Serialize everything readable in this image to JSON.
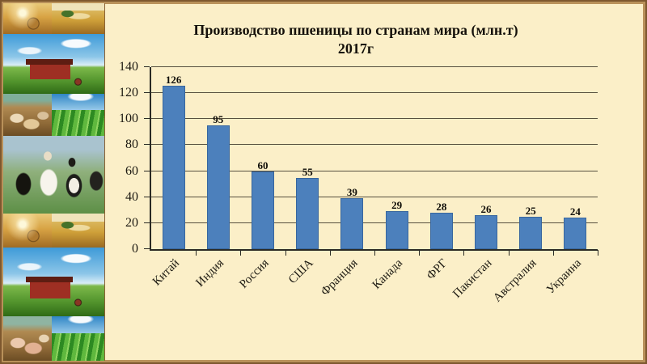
{
  "slide": {
    "title_line1": "Производство пшеницы по странам мира (млн.т)",
    "title_line2": "2017г"
  },
  "sidebar": {
    "photos": [
      "hay-bales-sunset-field",
      "combine-harvester-wheat-field",
      "red-barn-tractor-meadow",
      "goats-farmyard",
      "green-crop-rows-field",
      "cows-herd-closeup",
      "hay-bales-sunset-field",
      "combine-harvester-wheat-field",
      "red-barn-tractor-meadow",
      "pigs-farmyard",
      "green-crop-rows-field"
    ]
  },
  "chart_data": {
    "type": "bar",
    "title": "Производство пшеницы по странам мира (млн.т) 2017г",
    "categories": [
      "Китай",
      "Индия",
      "Россия",
      "США",
      "Франция",
      "Канада",
      "ФРГ",
      "Пакистан",
      "Австралия",
      "Украина"
    ],
    "values": [
      126,
      95,
      60,
      55,
      39,
      29,
      28,
      26,
      25,
      24
    ],
    "data_labels": true,
    "xlabel": "",
    "ylabel": "",
    "ylim": [
      0,
      140
    ],
    "yticks": [
      0,
      20,
      40,
      60,
      80,
      100,
      120,
      140
    ],
    "grid": true,
    "legend": "none",
    "bar_color": "#4C80BC",
    "bar_border_color": "#38669E"
  },
  "colors": {
    "slide_background": "#FBEFC8",
    "frame_brown": "#9A6F3F",
    "axis": "#2A2A24",
    "gridline": "#57513F",
    "text": "#14100A"
  }
}
